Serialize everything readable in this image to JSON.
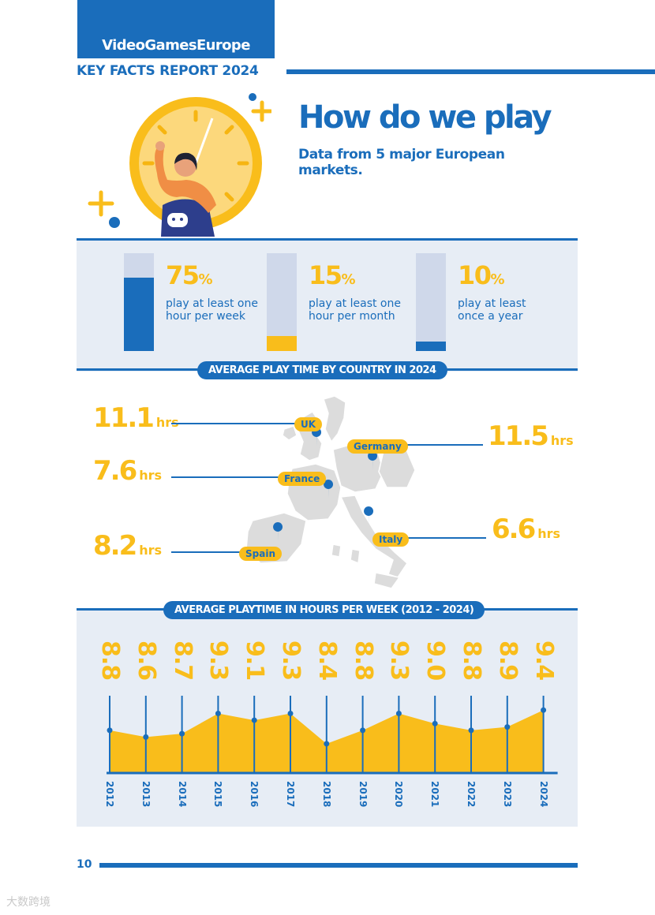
{
  "header": {
    "brand": "VideoGamesEurope",
    "report_title": "KEY FACTS REPORT 2024"
  },
  "intro": {
    "heading": "How do we play",
    "subheading": "Data from 5 major European markets."
  },
  "frequency": [
    {
      "value": "75",
      "unit": "%",
      "text": "play at least one hour per week",
      "fraction": 0.75,
      "color": "#1a6dbb"
    },
    {
      "value": "15",
      "unit": "%",
      "text": "play at least one hour per month",
      "fraction": 0.15,
      "color": "#f9bd1b"
    },
    {
      "value": "10",
      "unit": "%",
      "text": "play at least once a year",
      "fraction": 0.1,
      "color": "#1a6dbb"
    }
  ],
  "country_section": {
    "title": "AVERAGE PLAY TIME BY COUNTRY IN 2024",
    "countries": [
      {
        "name": "UK",
        "hours": "11.1",
        "unit": "hrs"
      },
      {
        "name": "Germany",
        "hours": "11.5",
        "unit": "hrs"
      },
      {
        "name": "France",
        "hours": "7.6",
        "unit": "hrs"
      },
      {
        "name": "Italy",
        "hours": "6.6",
        "unit": "hrs"
      },
      {
        "name": "Spain",
        "hours": "8.2",
        "unit": "hrs"
      }
    ]
  },
  "trend_section": {
    "title": "AVERAGE PLAYTIME IN HOURS PER WEEK (2012 - 2024)"
  },
  "chart_data": {
    "type": "area",
    "x": [
      "2012",
      "2013",
      "2014",
      "2015",
      "2016",
      "2017",
      "2018",
      "2019",
      "2020",
      "2021",
      "2022",
      "2023",
      "2024"
    ],
    "values": [
      8.8,
      8.6,
      8.7,
      9.3,
      9.1,
      9.3,
      8.4,
      8.8,
      9.3,
      9.0,
      8.8,
      8.9,
      9.4
    ],
    "value_labels": [
      "8.8",
      "8.6",
      "8.7",
      "9.3",
      "9.1",
      "9.3",
      "8.4",
      "8.8",
      "9.3",
      "9.0",
      "8.8",
      "8.9",
      "9.4"
    ],
    "colors": {
      "fill": "#f9bd1b",
      "line": "#1a6dbb"
    }
  },
  "footer": {
    "page_number": "10"
  },
  "watermark": "大数跨境",
  "colors": {
    "blue": "#1a6dbb",
    "yellow": "#f9bd1b",
    "panel": "#e7edf5"
  }
}
